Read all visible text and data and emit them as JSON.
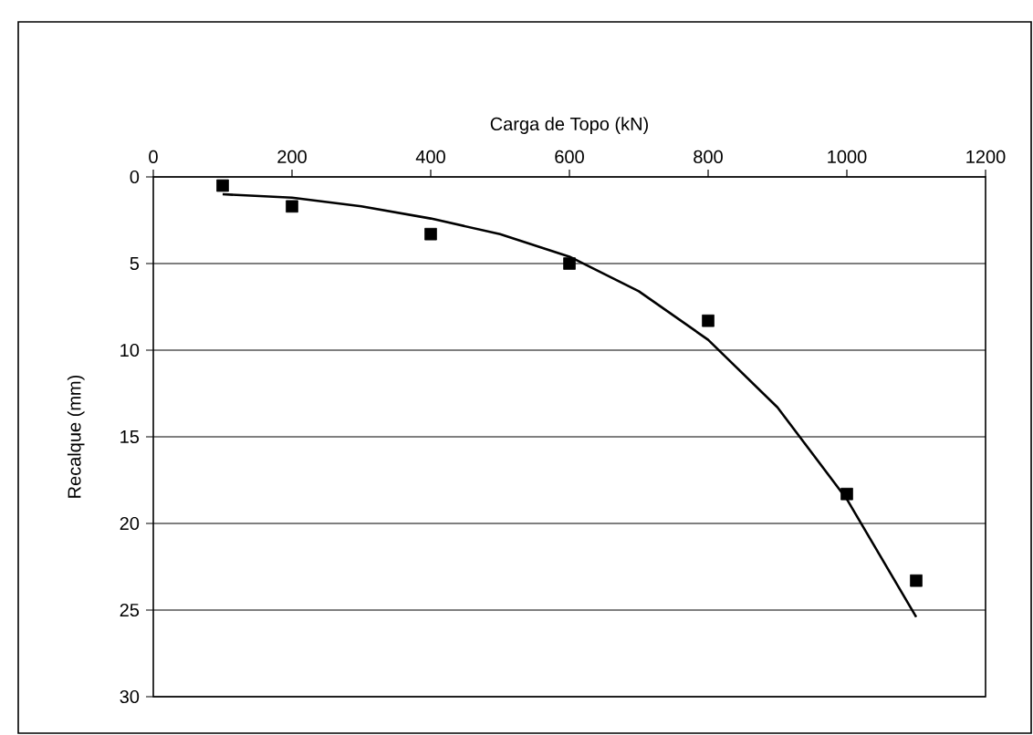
{
  "chart_data": {
    "type": "scatter",
    "xlabel": "Carga de Topo (kN)",
    "ylabel": "Recalque (mm)",
    "xlim": [
      0,
      1200
    ],
    "xticks": [
      0,
      200,
      400,
      600,
      800,
      1000,
      1200
    ],
    "ylim": [
      30,
      0
    ],
    "yticks": [
      0,
      5,
      10,
      15,
      20,
      25,
      30
    ],
    "grid": "y",
    "legend": false,
    "series": [
      {
        "color": "#000000",
        "marker": "square",
        "x": [
          100,
          200,
          400,
          600,
          800,
          1000,
          1100
        ],
        "values": [
          0.5,
          1.7,
          3.3,
          5.0,
          8.3,
          18.3,
          23.3
        ]
      },
      {
        "type": "line",
        "color": "#000000",
        "marker": "none",
        "line_style": "solid",
        "x": [
          100,
          200,
          300,
          400,
          500,
          600,
          700,
          800,
          900,
          1000,
          1100
        ],
        "values": [
          1.0,
          1.2,
          1.7,
          2.4,
          3.3,
          4.6,
          6.6,
          9.4,
          13.3,
          18.6,
          25.4
        ]
      }
    ]
  }
}
